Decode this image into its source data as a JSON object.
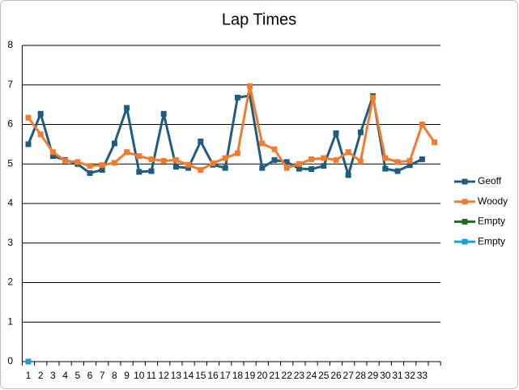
{
  "chart_data": {
    "type": "line",
    "title": "Lap Times",
    "categories": [
      "1",
      "2",
      "3",
      "4",
      "5",
      "6",
      "7",
      "8",
      "9",
      "10",
      "11",
      "12",
      "13",
      "14",
      "15",
      "16",
      "17",
      "18",
      "19",
      "20",
      "21",
      "22",
      "23",
      "24",
      "25",
      "26",
      "27",
      "28",
      "29",
      "30",
      "31",
      "32",
      "33",
      null
    ],
    "series": [
      {
        "name": "Geoff",
        "color": "#1f5c80",
        "values": [
          5.5,
          6.27,
          5.2,
          5.1,
          5.0,
          4.77,
          4.85,
          5.52,
          6.42,
          4.8,
          4.82,
          6.27,
          4.93,
          4.9,
          5.57,
          4.98,
          4.9,
          6.68,
          6.73,
          4.9,
          5.1,
          5.05,
          4.88,
          4.87,
          4.95,
          5.78,
          4.72,
          5.8,
          6.72,
          4.88,
          4.82,
          4.97,
          5.12,
          null
        ]
      },
      {
        "name": "Woody",
        "color": "#f07c30",
        "values": [
          6.17,
          5.75,
          5.3,
          5.08,
          5.05,
          4.95,
          4.97,
          5.03,
          5.3,
          5.2,
          5.12,
          5.08,
          5.1,
          4.98,
          4.85,
          5.02,
          5.15,
          5.27,
          6.97,
          5.52,
          5.37,
          4.9,
          5.0,
          5.12,
          5.15,
          5.1,
          5.3,
          5.07,
          6.68,
          5.15,
          5.05,
          5.08,
          6.0,
          5.55
        ]
      },
      {
        "name": "Empty",
        "color": "#1e6b24",
        "values": [
          null,
          null,
          null,
          null,
          null,
          null,
          null,
          null,
          null,
          null,
          null,
          null,
          null,
          null,
          null,
          null,
          null,
          null,
          null,
          null,
          null,
          null,
          null,
          null,
          null,
          null,
          null,
          null,
          null,
          null,
          null,
          null,
          null,
          null
        ]
      },
      {
        "name": "Empty",
        "color": "#1aa0d6",
        "values": [
          0,
          null,
          null,
          null,
          null,
          null,
          null,
          null,
          null,
          null,
          null,
          null,
          null,
          null,
          null,
          null,
          null,
          null,
          null,
          null,
          null,
          null,
          null,
          null,
          null,
          null,
          null,
          null,
          null,
          null,
          null,
          null,
          null,
          null
        ]
      }
    ],
    "ylim": [
      0,
      8
    ],
    "yticks": [
      0,
      1,
      2,
      3,
      4,
      5,
      6,
      7,
      8
    ],
    "grid": true,
    "legend": "right"
  }
}
